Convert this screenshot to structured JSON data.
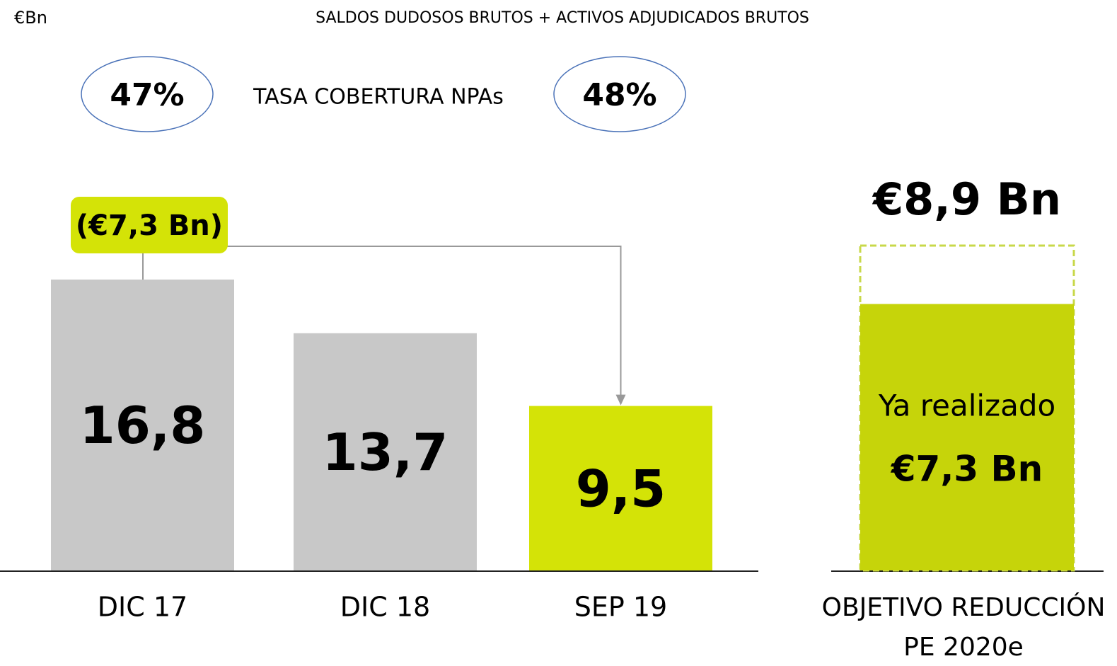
{
  "chart_data": {
    "type": "bar",
    "unit": "€Bn",
    "title": "SALDOS DUDOSOS BRUTOS + ACTIVOS ADJUDICADOS BRUTOS",
    "coverage": {
      "label": "TASA COBERTURA NPAs",
      "values": [
        47,
        48
      ],
      "value_labels": [
        "47%",
        "48%"
      ]
    },
    "categories": [
      "DIC 17",
      "DIC 18",
      "SEP 19"
    ],
    "values": [
      16.8,
      13.7,
      9.5
    ],
    "value_labels": [
      "16,8",
      "13,7",
      "9,5"
    ],
    "colors": [
      "#c8c8c8",
      "#c8c8c8",
      "#d4e307"
    ],
    "reduction": {
      "value": 7.3,
      "label": "(€7,3 Bn)"
    },
    "target": {
      "category": [
        "OBJETIVO REDUCCIÓN",
        "PE 2020e"
      ],
      "goal": {
        "value": 8.9,
        "label": "€8,9 Bn"
      },
      "achieved": {
        "value": 7.3,
        "label": "€7,3 Bn",
        "text": "Ya realizado"
      },
      "color": "#c6d40a",
      "goal_color": "#c8d84a"
    }
  }
}
